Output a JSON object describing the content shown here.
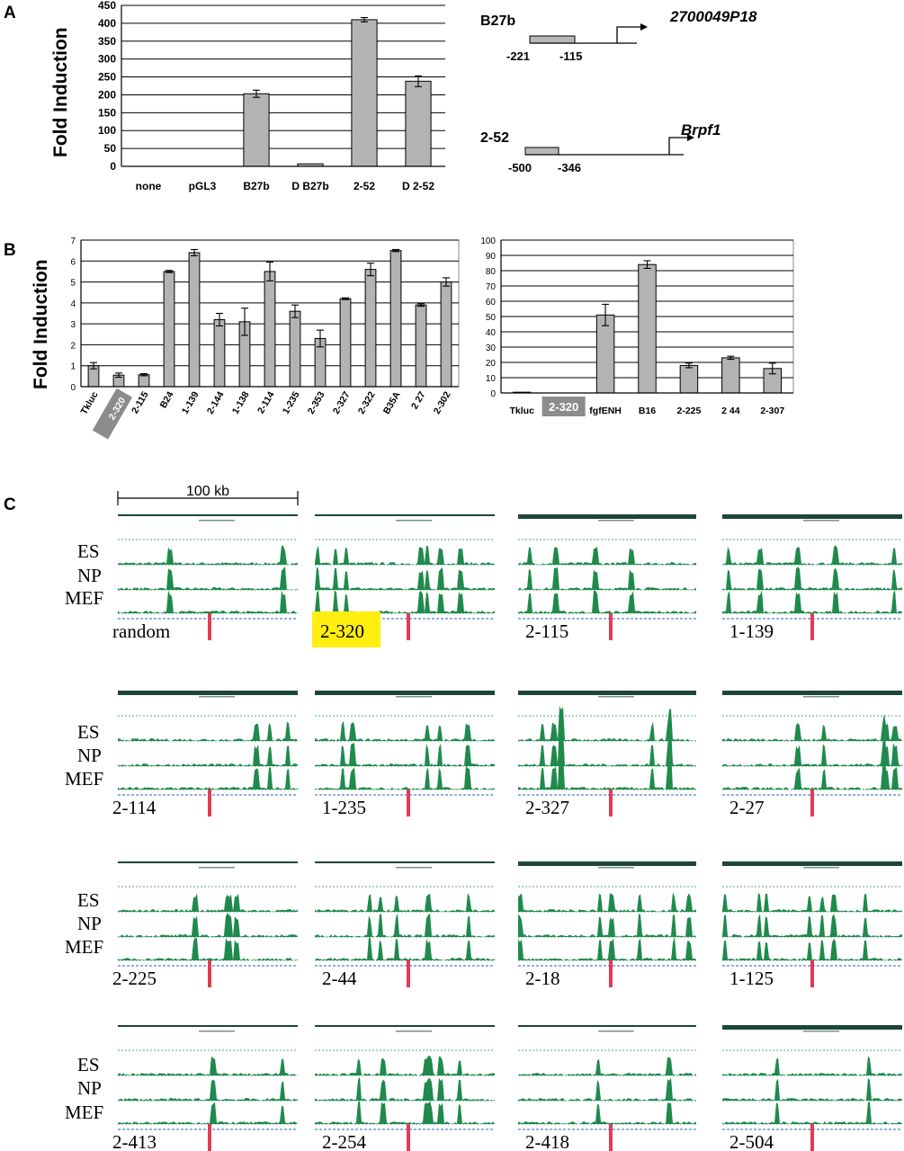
{
  "panels": {
    "a": "A",
    "b": "B",
    "c": "C"
  },
  "chart_data": [
    {
      "type": "bar",
      "panel": "A",
      "ylabel": "Fold Induction",
      "ylim": [
        0,
        450
      ],
      "yticks": [
        0,
        50,
        100,
        150,
        200,
        250,
        300,
        350,
        400,
        450
      ],
      "grid": true,
      "categories": [
        "none",
        "pGL3",
        "B27b",
        "D B27b",
        "2-52",
        "D 2-52"
      ],
      "values": [
        0,
        0,
        203,
        7,
        410,
        238
      ],
      "errors": [
        0,
        0,
        10,
        0,
        6,
        15
      ]
    },
    {
      "type": "bar",
      "panel": "B-left",
      "ylabel": "Fold Induction",
      "ylim": [
        0,
        7
      ],
      "yticks": [
        0,
        1,
        2,
        3,
        4,
        5,
        6,
        7
      ],
      "grid": true,
      "categories": [
        "Tkluc",
        "2-320",
        "2-115",
        "B24",
        "1-139",
        "2-144",
        "1-138",
        "2-114",
        "1-235",
        "2-353",
        "2-327",
        "2-322",
        "B35A",
        "2 27",
        "2-302"
      ],
      "values": [
        1.0,
        0.55,
        0.57,
        5.5,
        6.4,
        3.2,
        3.1,
        5.5,
        3.6,
        2.3,
        4.2,
        5.6,
        6.5,
        3.9,
        5.0
      ],
      "errors": [
        0.15,
        0.1,
        0.05,
        0.05,
        0.15,
        0.3,
        0.65,
        0.45,
        0.3,
        0.4,
        0.04,
        0.3,
        0.05,
        0.06,
        0.2
      ],
      "highlight": "2-320"
    },
    {
      "type": "bar",
      "panel": "B-right",
      "ylim": [
        0,
        100
      ],
      "yticks": [
        0,
        10,
        20,
        30,
        40,
        50,
        60,
        70,
        80,
        90,
        100
      ],
      "grid": true,
      "categories": [
        "Tkluc",
        "2-320",
        "fgfENH",
        "B16",
        "2-225",
        "2 44",
        "2-307"
      ],
      "values": [
        0.5,
        0,
        51,
        84,
        18,
        23,
        16
      ],
      "errors": [
        0,
        0,
        7,
        2.5,
        1.5,
        1,
        3.5
      ],
      "highlight": "2-320"
    }
  ],
  "constructs": [
    {
      "name": "B27b",
      "gene": "2700049P18",
      "start": "-221",
      "end": "-115"
    },
    {
      "name": "2-52",
      "gene": "Brpf1",
      "start": "-500",
      "end": "-346"
    }
  ],
  "panel_c": {
    "scale_label": "100 kb",
    "track_labels": [
      "ES",
      "NP",
      "MEF"
    ],
    "regions": [
      [
        "random",
        "2-320",
        "2-115",
        "1-139"
      ],
      [
        "2-114",
        "1-235",
        "2-327",
        "2-27"
      ],
      [
        "2-225",
        "2-44",
        "2-18",
        "1-125"
      ],
      [
        "2-413",
        "2-254",
        "2-418",
        "2-504"
      ]
    ],
    "highlighted_region": "2-320",
    "colors": {
      "signal": "#1f8a4c",
      "header": "#1e4636",
      "marker": "#e03c55",
      "highlight": "#ffee10",
      "gene": "#2a5fc0"
    }
  }
}
